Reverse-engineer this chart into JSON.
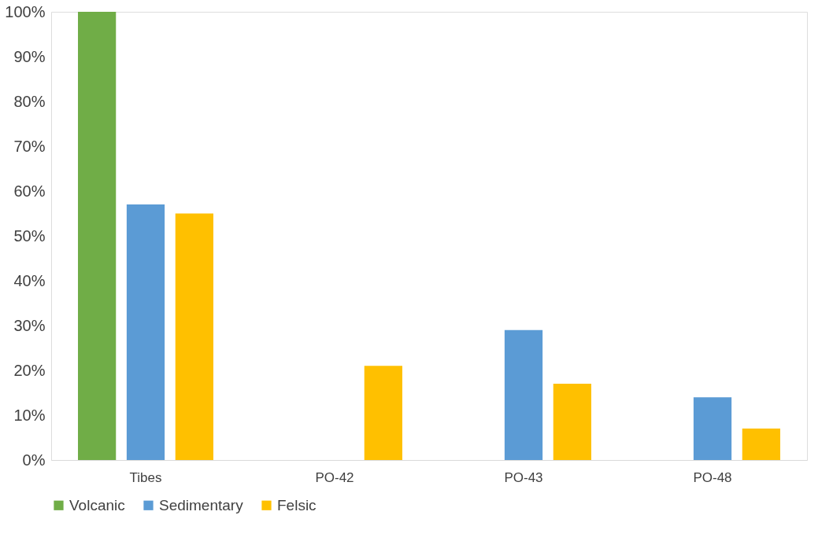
{
  "chart_data": {
    "type": "bar",
    "categories": [
      "Tibes",
      "PO-42",
      "PO-43",
      "PO-48"
    ],
    "series": [
      {
        "name": "Volcanic",
        "color": "#70ad47",
        "values": [
          100,
          null,
          null,
          null
        ]
      },
      {
        "name": "Sedimentary",
        "color": "#5b9bd5",
        "values": [
          57,
          null,
          29,
          14
        ]
      },
      {
        "name": "Felsic",
        "color": "#ffc000",
        "values": [
          55,
          21,
          17,
          7
        ]
      }
    ],
    "ylim": [
      0,
      100
    ],
    "yticks": [
      {
        "value": 0,
        "label": "0%"
      },
      {
        "value": 10,
        "label": "10%"
      },
      {
        "value": 20,
        "label": "20%"
      },
      {
        "value": 30,
        "label": "30%"
      },
      {
        "value": 40,
        "label": "40%"
      },
      {
        "value": 50,
        "label": "50%"
      },
      {
        "value": 60,
        "label": "60%"
      },
      {
        "value": 70,
        "label": "70%"
      },
      {
        "value": 80,
        "label": "80%"
      },
      {
        "value": 90,
        "label": "90%"
      },
      {
        "value": 100,
        "label": "100%"
      }
    ],
    "grid": false,
    "legend": "bottom"
  }
}
